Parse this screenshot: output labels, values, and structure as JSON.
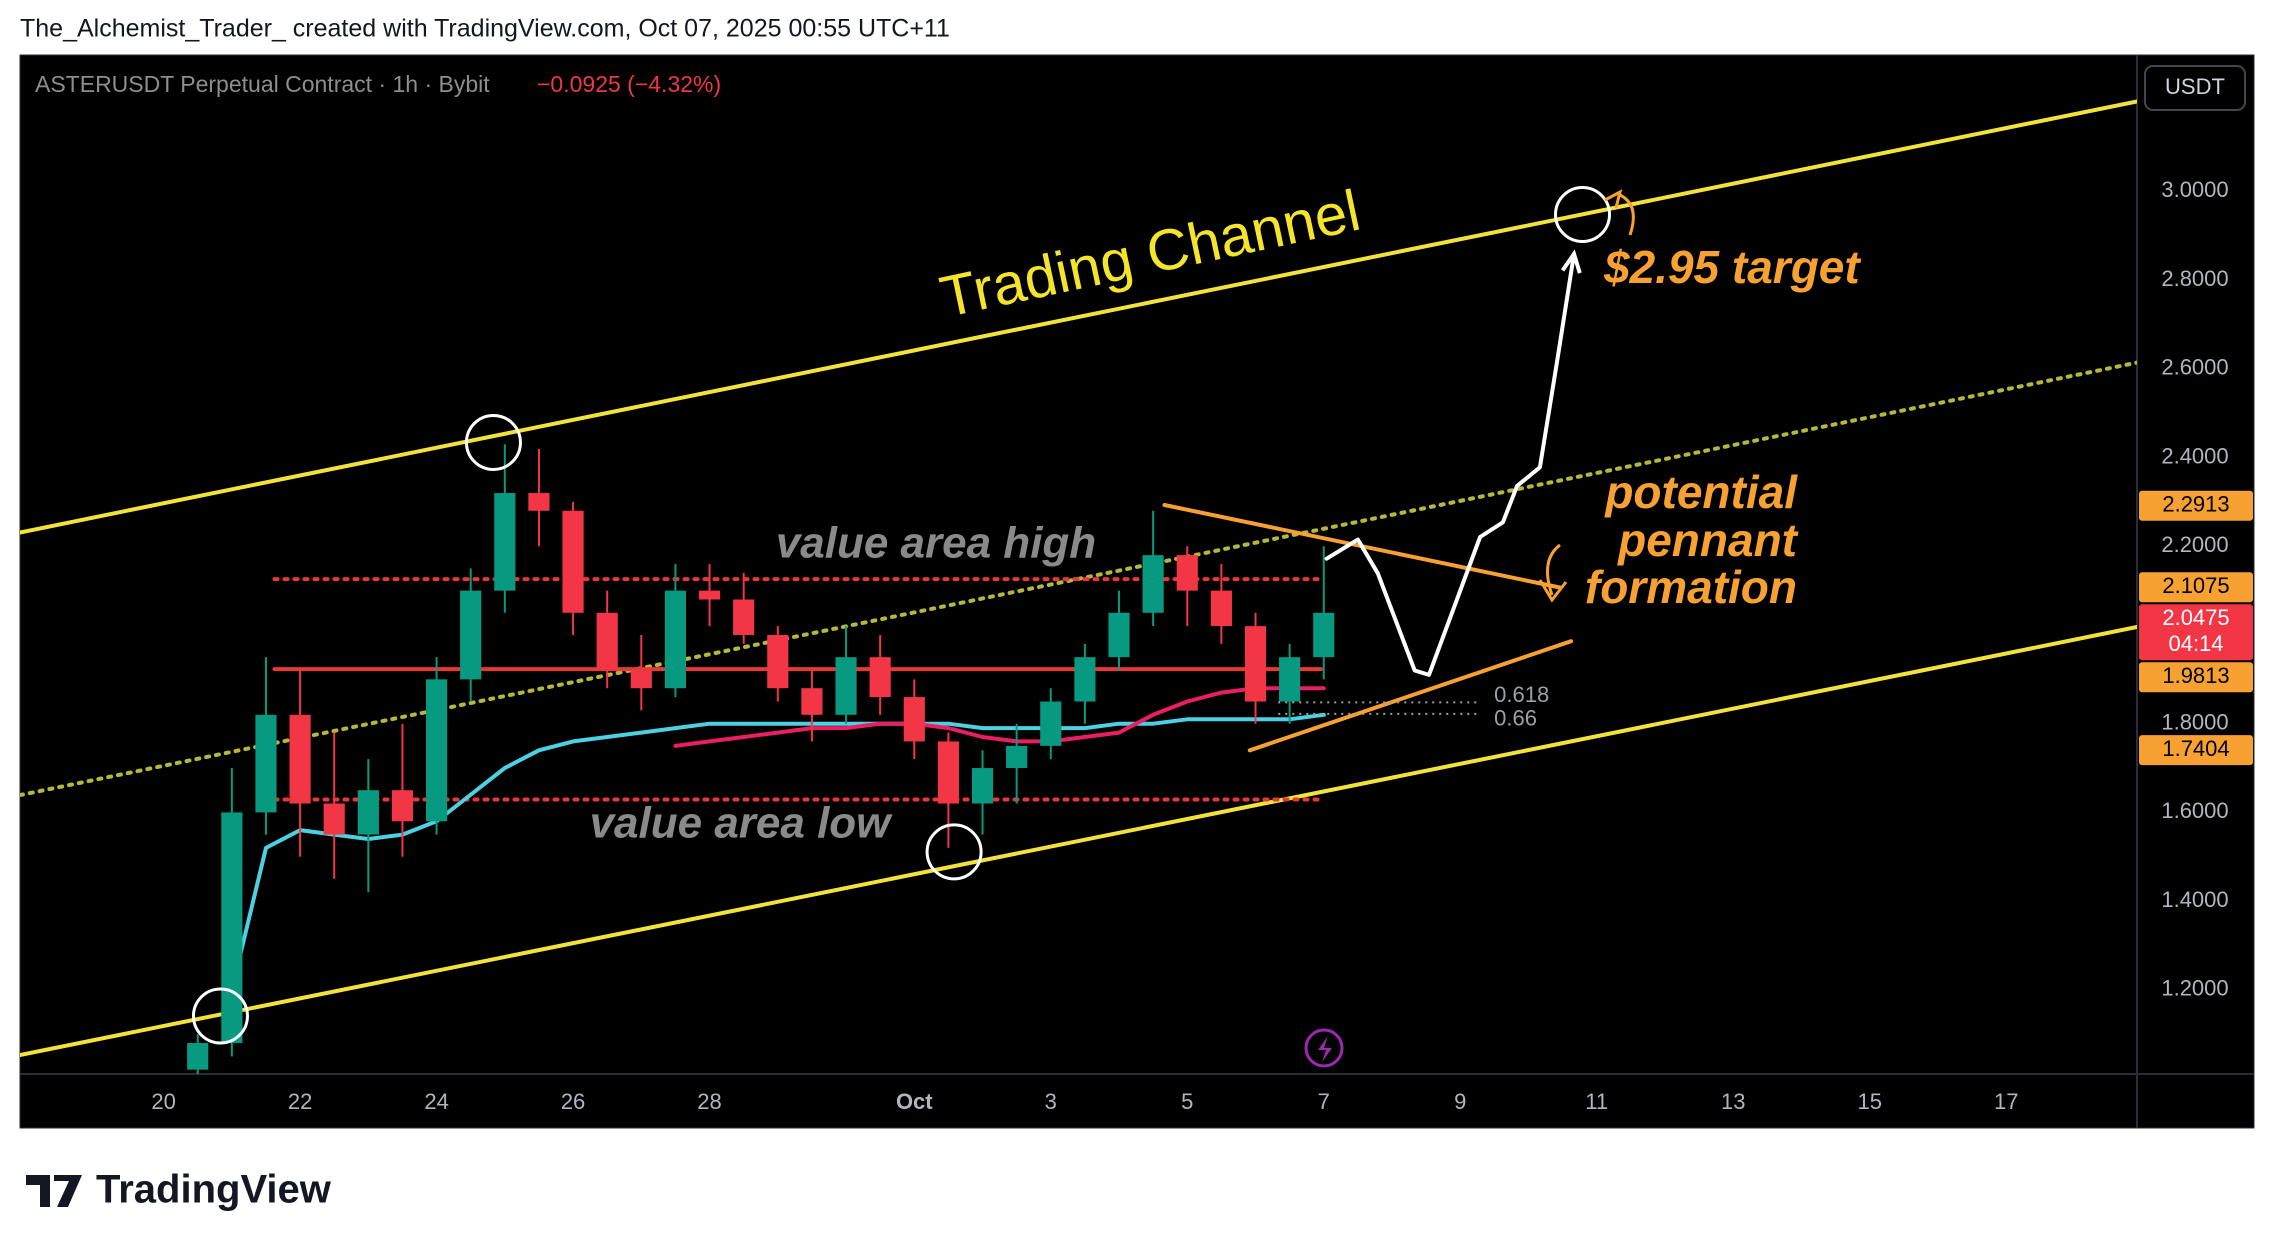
{
  "header": {
    "caption": "The_Alchemist_Trader_ created with TradingView.com, Oct 07, 2025 00:55 UTC+11"
  },
  "footer": {
    "brand": "TradingView"
  },
  "chart_data": {
    "type": "candlestick",
    "title": "ASTERUSDT Perpetual Contract · 1h · Bybit",
    "change": "−0.0925 (−4.32%)",
    "currency": "USDT",
    "grid": false,
    "up_color": "#089981",
    "down_color": "#f23645",
    "xlim": [
      "2025-09-17T21:30",
      "2025-10-18T22:00"
    ],
    "xticks": [
      {
        "value": "2025-09-20T00:00",
        "label": "20"
      },
      {
        "value": "2025-09-22T00:00",
        "label": "22"
      },
      {
        "value": "2025-09-24T00:00",
        "label": "24"
      },
      {
        "value": "2025-09-26T00:00",
        "label": "26"
      },
      {
        "value": "2025-09-28T00:00",
        "label": "28"
      },
      {
        "value": "2025-10-01T00:00",
        "label": "Oct"
      },
      {
        "value": "2025-10-03T00:00",
        "label": "3"
      },
      {
        "value": "2025-10-05T00:00",
        "label": "5"
      },
      {
        "value": "2025-10-07T00:00",
        "label": "7"
      },
      {
        "value": "2025-10-09T00:00",
        "label": "9"
      },
      {
        "value": "2025-10-11T00:00",
        "label": "11"
      },
      {
        "value": "2025-10-13T00:00",
        "label": "13"
      },
      {
        "value": "2025-10-15T00:00",
        "label": "15"
      },
      {
        "value": "2025-10-17T00:00",
        "label": "17"
      }
    ],
    "ylim": [
      1.0102,
      3.3076
    ],
    "yticks": [
      {
        "value": 1.2,
        "label": "1.2000"
      },
      {
        "value": 1.4,
        "label": "1.4000"
      },
      {
        "value": 1.6,
        "label": "1.6000"
      },
      {
        "value": 1.8,
        "label": "1.8000"
      },
      {
        "value": 2.0,
        "label": "2.0000"
      },
      {
        "value": 2.2,
        "label": "2.2000"
      },
      {
        "value": 2.4,
        "label": "2.4000"
      },
      {
        "value": 2.6,
        "label": "2.6000"
      },
      {
        "value": 2.8,
        "label": "2.8000"
      },
      {
        "value": 3.0,
        "label": "3.0000"
      }
    ],
    "x": [
      "2025-09-20T12:00",
      "2025-09-21T00:00",
      "2025-09-21T12:00",
      "2025-09-22T00:00",
      "2025-09-22T12:00",
      "2025-09-23T00:00",
      "2025-09-23T12:00",
      "2025-09-24T00:00",
      "2025-09-24T12:00",
      "2025-09-25T00:00",
      "2025-09-25T12:00",
      "2025-09-26T00:00",
      "2025-09-26T12:00",
      "2025-09-27T00:00",
      "2025-09-27T12:00",
      "2025-09-28T00:00",
      "2025-09-28T12:00",
      "2025-09-29T00:00",
      "2025-09-29T12:00",
      "2025-09-30T00:00",
      "2025-09-30T12:00",
      "2025-10-01T00:00",
      "2025-10-01T12:00",
      "2025-10-02T00:00",
      "2025-10-02T12:00",
      "2025-10-03T00:00",
      "2025-10-03T12:00",
      "2025-10-04T00:00",
      "2025-10-04T12:00",
      "2025-10-05T00:00",
      "2025-10-05T12:00",
      "2025-10-06T00:00",
      "2025-10-06T12:00",
      "2025-10-07T00:00"
    ],
    "open": [
      1.02,
      1.08,
      1.6,
      1.82,
      1.62,
      1.55,
      1.65,
      1.58,
      1.9,
      2.1,
      2.32,
      2.28,
      2.05,
      1.92,
      1.88,
      2.1,
      2.08,
      2.0,
      1.88,
      1.82,
      1.95,
      1.86,
      1.76,
      1.62,
      1.7,
      1.75,
      1.85,
      1.95,
      2.05,
      2.18,
      2.1,
      2.02,
      1.85,
      1.95
    ],
    "high": [
      1.1,
      1.7,
      1.95,
      1.92,
      1.78,
      1.72,
      1.8,
      1.95,
      2.15,
      2.43,
      2.42,
      2.3,
      2.1,
      2.0,
      2.16,
      2.16,
      2.14,
      2.02,
      1.92,
      2.02,
      2.0,
      1.9,
      1.78,
      1.74,
      1.8,
      1.88,
      1.98,
      2.1,
      2.28,
      2.2,
      2.16,
      2.05,
      1.98,
      2.2
    ],
    "low": [
      1.0,
      1.05,
      1.55,
      1.5,
      1.45,
      1.42,
      1.5,
      1.55,
      1.85,
      2.05,
      2.2,
      2.0,
      1.88,
      1.83,
      1.86,
      2.02,
      1.98,
      1.85,
      1.76,
      1.8,
      1.82,
      1.72,
      1.52,
      1.55,
      1.62,
      1.72,
      1.8,
      1.92,
      2.02,
      2.02,
      1.98,
      1.8,
      1.8,
      1.9
    ],
    "close": [
      1.08,
      1.6,
      1.82,
      1.62,
      1.55,
      1.65,
      1.58,
      1.9,
      2.1,
      2.32,
      2.28,
      2.05,
      1.92,
      1.88,
      2.1,
      2.08,
      2.0,
      1.88,
      1.82,
      1.95,
      1.86,
      1.76,
      1.62,
      1.7,
      1.75,
      1.85,
      1.95,
      2.05,
      2.18,
      2.1,
      2.02,
      1.85,
      1.95,
      2.05
    ],
    "indicators": [
      {
        "color": "#4dd0e1",
        "values": [
          null,
          1.2,
          1.52,
          1.56,
          1.55,
          1.54,
          1.55,
          1.58,
          1.64,
          1.7,
          1.74,
          1.76,
          1.77,
          1.78,
          1.79,
          1.8,
          1.8,
          1.8,
          1.8,
          1.8,
          1.8,
          1.8,
          1.8,
          1.79,
          1.79,
          1.79,
          1.79,
          1.8,
          1.8,
          1.81,
          1.81,
          1.81,
          1.81,
          1.82
        ]
      },
      {
        "color": "#e91e63",
        "values": [
          null,
          null,
          null,
          null,
          null,
          null,
          null,
          null,
          null,
          null,
          null,
          null,
          null,
          null,
          1.75,
          1.76,
          1.77,
          1.78,
          1.79,
          1.79,
          1.8,
          1.8,
          1.79,
          1.77,
          1.76,
          1.76,
          1.77,
          1.78,
          1.82,
          1.85,
          1.87,
          1.88,
          1.88,
          1.88
        ]
      }
    ],
    "drawings": [
      {
        "x": [
          "2025-09-17T21:30",
          "2025-10-18T22:00"
        ],
        "y": [
          2.231,
          3.203
        ],
        "color": "#f2e33b",
        "style": "solid"
      },
      {
        "x": [
          "2025-09-17T21:30",
          "2025-10-18T22:00"
        ],
        "y": [
          1.053,
          2.018
        ],
        "color": "#f2e33b",
        "style": "solid"
      },
      {
        "x": [
          "2025-09-17T21:30",
          "2025-10-18T22:00"
        ],
        "y": [
          1.639,
          2.614
        ],
        "color": "#b5b83a",
        "style": "dotted"
      },
      {
        "x": [
          "2025-09-21T15:00",
          "2025-10-06T23:00"
        ],
        "y": [
          2.126,
          2.126
        ],
        "color": "#e53935",
        "style": "dotted"
      },
      {
        "x": [
          "2025-09-21T15:00",
          "2025-10-06T23:00"
        ],
        "y": [
          1.923,
          1.923
        ],
        "color": "#e53935",
        "style": "solid"
      },
      {
        "x": [
          "2025-09-21T15:00",
          "2025-10-06T23:00"
        ],
        "y": [
          1.629,
          1.629
        ],
        "color": "#e53935",
        "style": "dotted"
      },
      {
        "x": [
          "2025-10-04T16:00",
          "2025-10-10T11:00"
        ],
        "y": [
          2.293,
          2.107
        ],
        "color": "#f7a133",
        "style": "solid"
      },
      {
        "x": [
          "2025-10-05T22:00",
          "2025-10-10T15:00"
        ],
        "y": [
          1.74,
          1.986
        ],
        "color": "#f7a133",
        "style": "solid"
      },
      {
        "x": [
          "2025-10-07T01:00",
          "2025-10-07T12:00",
          "2025-10-07T19:00",
          "2025-10-08T08:00",
          "2025-10-08T13:00",
          "2025-10-09T07:00",
          "2025-10-09T15:00",
          "2025-10-09T20:00",
          "2025-10-10T04:00",
          "2025-10-10T10:00",
          "2025-10-10T16:00"
        ],
        "y": [
          2.172,
          2.215,
          2.139,
          1.92,
          1.91,
          2.221,
          2.254,
          2.336,
          2.378,
          2.614,
          2.859
        ],
        "color": "#ffffff",
        "style": "solid",
        "arrow": true
      }
    ],
    "circles": {
      "x": [
        "2025-09-24T20:00",
        "2025-10-01T14:00",
        "2025-09-20T20:00",
        "2025-10-10T19:00"
      ],
      "y": [
        2.434,
        1.511,
        1.141,
        2.948
      ]
    },
    "fib": {
      "x": [
        "2025-10-06T08:00",
        "2025-10-09T07:00"
      ],
      "ratios": [
        0.618,
        0.66
      ],
      "prices": [
        1.848,
        1.822
      ]
    },
    "price_labels": {
      "values": [
        2.2913,
        2.1075,
        2.0475,
        1.9813,
        1.7404
      ],
      "colors": [
        "#f7a133",
        "#f7a133",
        "#f23645",
        "#f7a133",
        "#f7a133"
      ],
      "countdown": "04:14"
    },
    "annotations": [
      "Trading Channel",
      "value area high",
      "value area low",
      "$2.95 target",
      "potential",
      "pennant",
      "formation"
    ]
  }
}
